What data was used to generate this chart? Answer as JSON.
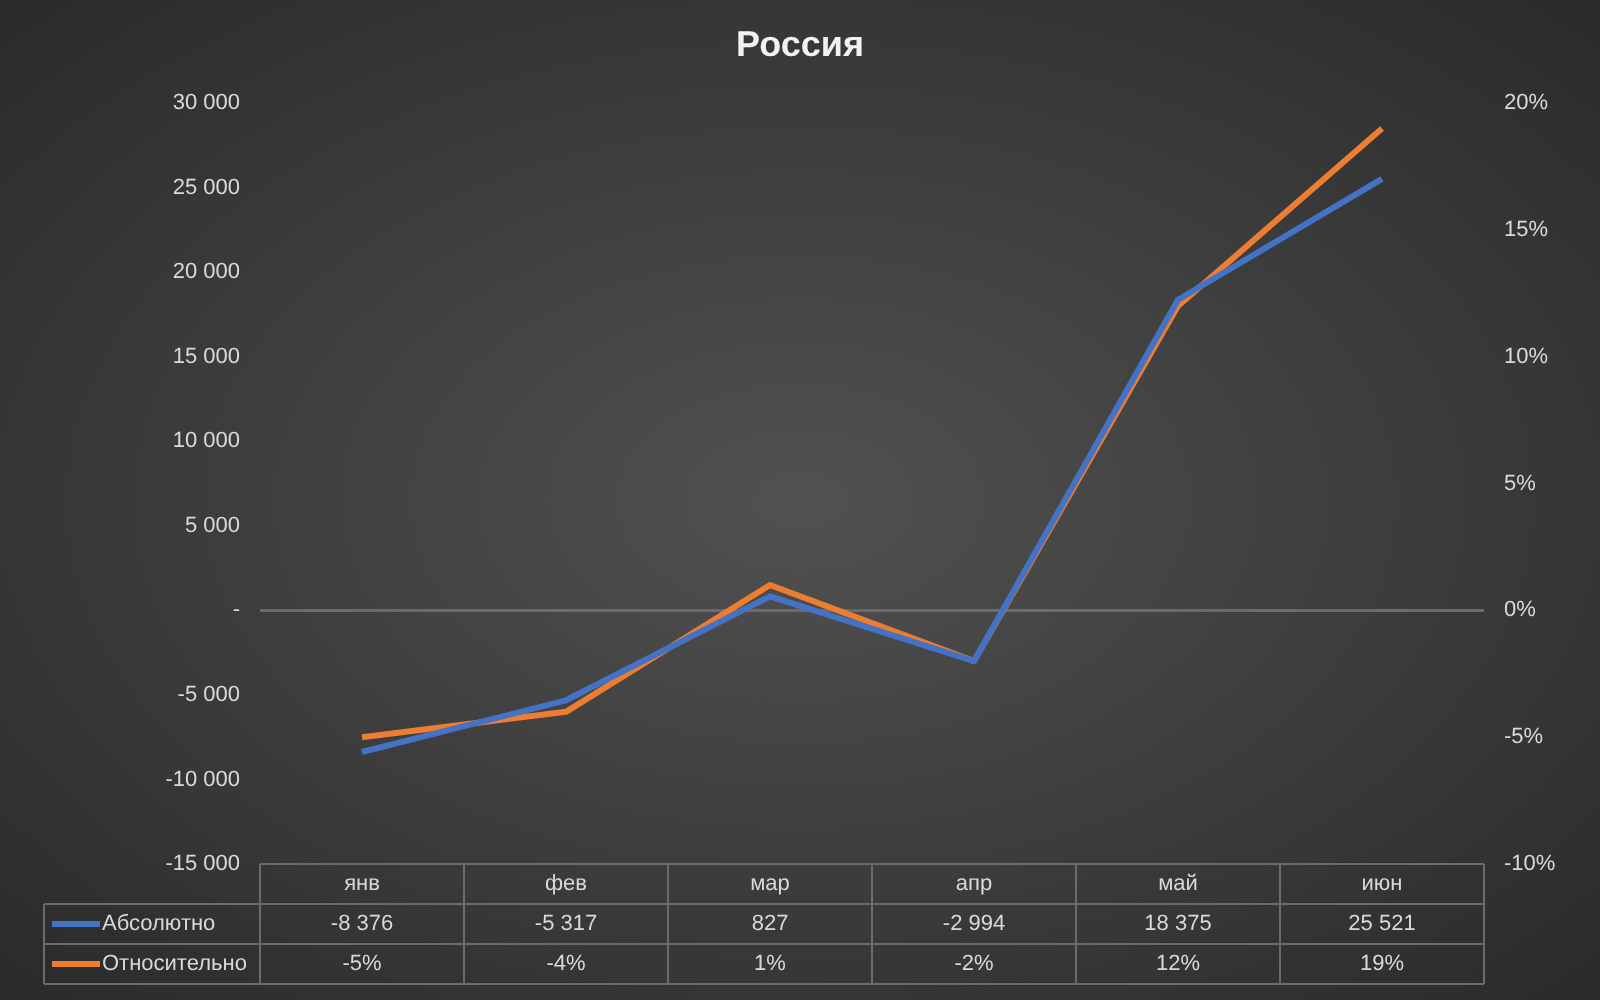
{
  "chart_data": {
    "type": "line",
    "title": "Россия",
    "categories": [
      "янв",
      "фев",
      "мар",
      "апр",
      "май",
      "июн"
    ],
    "series": [
      {
        "name": "Абсолютно",
        "color": "#4472c4",
        "values": [
          -8376,
          -5317,
          827,
          -2994,
          18375,
          25521
        ],
        "value_labels": [
          "-8 376",
          "-5 317",
          "827",
          "-2 994",
          "18 375",
          "25 521"
        ]
      },
      {
        "name": "Относительно",
        "color": "#ed7d31",
        "axis": "y2",
        "values": [
          -5,
          -4,
          1,
          -2,
          12,
          19
        ],
        "value_labels": [
          "-5%",
          "-4%",
          "1%",
          "-2%",
          "12%",
          "19%"
        ]
      }
    ],
    "ylim": [
      -15000,
      30000
    ],
    "yticks": [
      {
        "value": -15000,
        "label": "-15 000"
      },
      {
        "value": -10000,
        "label": "-10 000"
      },
      {
        "value": -5000,
        "label": "-5 000"
      },
      {
        "value": 0,
        "label": "-"
      },
      {
        "value": 5000,
        "label": "5 000"
      },
      {
        "value": 10000,
        "label": "10 000"
      },
      {
        "value": 15000,
        "label": "15 000"
      },
      {
        "value": 20000,
        "label": "20 000"
      },
      {
        "value": 25000,
        "label": "25 000"
      },
      {
        "value": 30000,
        "label": "30 000"
      }
    ],
    "y2lim": [
      -10,
      20
    ],
    "y2ticks": [
      {
        "value": -10,
        "label": "-10%"
      },
      {
        "value": -5,
        "label": "-5%"
      },
      {
        "value": 0,
        "label": "0%"
      },
      {
        "value": 5,
        "label": "5%"
      },
      {
        "value": 10,
        "label": "10%"
      },
      {
        "value": 15,
        "label": "15%"
      },
      {
        "value": 20,
        "label": "20%"
      }
    ],
    "legend": "bottom",
    "marker": "none",
    "line_style": "solid"
  }
}
